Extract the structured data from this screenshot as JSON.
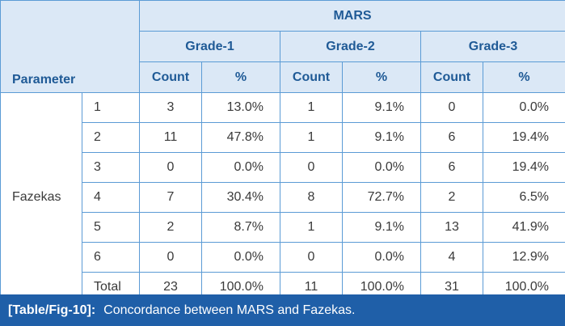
{
  "table": {
    "parameter_header": "Parameter",
    "group_header": "MARS",
    "grades": [
      "Grade-1",
      "Grade-2",
      "Grade-3"
    ],
    "count_label": "Count",
    "pct_label": "%",
    "row_group": "Fazekas",
    "rows": [
      {
        "label": "1",
        "c1": "3",
        "p1": "13.0%",
        "c2": "1",
        "p2": "9.1%",
        "c3": "0",
        "p3": "0.0%"
      },
      {
        "label": "2",
        "c1": "11",
        "p1": "47.8%",
        "c2": "1",
        "p2": "9.1%",
        "c3": "6",
        "p3": "19.4%"
      },
      {
        "label": "3",
        "c1": "0",
        "p1": "0.0%",
        "c2": "0",
        "p2": "0.0%",
        "c3": "6",
        "p3": "19.4%"
      },
      {
        "label": "4",
        "c1": "7",
        "p1": "30.4%",
        "c2": "8",
        "p2": "72.7%",
        "c3": "2",
        "p3": "6.5%"
      },
      {
        "label": "5",
        "c1": "2",
        "p1": "8.7%",
        "c2": "1",
        "p2": "9.1%",
        "c3": "13",
        "p3": "41.9%"
      },
      {
        "label": "6",
        "c1": "0",
        "p1": "0.0%",
        "c2": "0",
        "p2": "0.0%",
        "c3": "4",
        "p3": "12.9%"
      },
      {
        "label": "Total",
        "c1": "23",
        "p1": "100.0%",
        "c2": "11",
        "p2": "100.0%",
        "c3": "31",
        "p3": "100.0%"
      }
    ]
  },
  "caption": {
    "tag": "[Table/Fig-10]:",
    "text": "Concordance between MARS and Fazekas."
  },
  "colors": {
    "header_bg": "#dbe8f6",
    "header_text": "#1f5a96",
    "border": "#5b9bd5",
    "caption_bg": "#1f5fa8"
  }
}
